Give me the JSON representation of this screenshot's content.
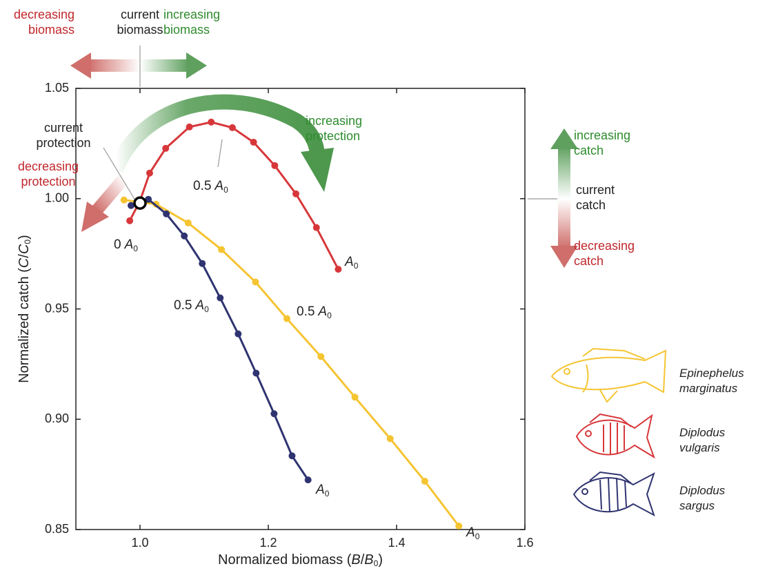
{
  "chart_data": {
    "type": "line",
    "xlabel_parts": [
      "Normalized biomass (",
      "B",
      "/",
      "B",
      "0",
      ")"
    ],
    "ylabel_parts": [
      "Normalized catch (",
      "C",
      "/",
      "C",
      "0",
      ")"
    ],
    "xlim": [
      0.9,
      1.6
    ],
    "ylim": [
      0.85,
      1.05
    ],
    "xticks": [
      {
        "value": 1.0,
        "label": "1.0"
      },
      1.2,
      1.4,
      1.6
    ],
    "yticks": [
      0.85,
      {
        "value": 0.9,
        "label": "0.90"
      },
      0.95,
      {
        "value": 1.0,
        "label": "1.00"
      },
      1.05
    ],
    "series": [
      {
        "name": "Epinephelus marginatus",
        "color": "#f5c431",
        "x": [
          0.975,
          1.025,
          1.075,
          1.127,
          1.18,
          1.229,
          1.282,
          1.335,
          1.39,
          1.444,
          1.497
        ],
        "values": [
          0.9994,
          0.9975,
          0.989,
          0.9769,
          0.9622,
          0.9456,
          0.9284,
          0.91,
          0.8912,
          0.8719,
          0.8516
        ],
        "labels": [
          {
            "prefix": "0.5",
            "italic": "A",
            "sub": "0"
          },
          {
            "italic": "A",
            "sub": "0"
          }
        ]
      },
      {
        "name": "Diplodus vulgaris",
        "color": "#d7373a",
        "x": [
          0.984,
          1.0,
          1.015,
          1.04,
          1.077,
          1.111,
          1.144,
          1.177,
          1.21,
          1.243,
          1.275,
          1.309
        ],
        "values": [
          0.99,
          0.999,
          1.0116,
          1.0228,
          1.0325,
          1.0347,
          1.0322,
          1.0256,
          1.015,
          1.0022,
          0.9869,
          0.968
        ],
        "labels": [
          {
            "prefix": "0",
            "italic": "A",
            "sub": "0"
          },
          {
            "prefix": "0.5",
            "italic": "A",
            "sub": "0"
          },
          {
            "italic": "A",
            "sub": "0"
          }
        ]
      },
      {
        "name": "Diplodus sargus",
        "color": "#2f3470",
        "x": [
          0.986,
          1.013,
          1.041,
          1.069,
          1.097,
          1.125,
          1.153,
          1.181,
          1.209,
          1.237,
          1.262
        ],
        "values": [
          0.9969,
          0.9997,
          0.9931,
          0.9831,
          0.9706,
          0.955,
          0.9387,
          0.9209,
          0.9025,
          0.8834,
          0.8725
        ],
        "labels": [
          {
            "prefix": "0.5",
            "italic": "A",
            "sub": "0"
          },
          {
            "italic": "A",
            "sub": "0"
          }
        ]
      }
    ],
    "current_point": {
      "x": 1.0,
      "y": 0.998
    },
    "annotations": {
      "biomass_decreasing": [
        "decreasing",
        "biomass"
      ],
      "biomass_current": [
        "current",
        "biomass"
      ],
      "biomass_increasing": [
        "increasing",
        "biomass"
      ],
      "protection_current": [
        "current",
        "protection"
      ],
      "protection_decreasing": [
        "decreasing",
        "protection"
      ],
      "protection_increasing": [
        "increasing",
        "protection"
      ],
      "catch_increasing": [
        "increasing",
        "catch"
      ],
      "catch_current": [
        "current",
        "catch"
      ],
      "catch_decreasing": [
        "decreasing",
        "catch"
      ]
    }
  }
}
